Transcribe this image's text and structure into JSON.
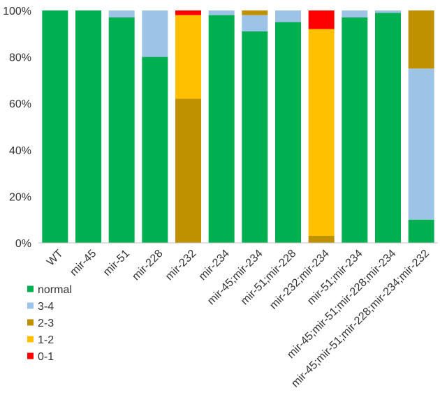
{
  "chart_data": {
    "type": "bar",
    "stacked": true,
    "title": "",
    "xlabel": "",
    "ylabel": "",
    "ylim": [
      0,
      100
    ],
    "yticks": [
      "0%",
      "20%",
      "40%",
      "60%",
      "80%",
      "100%"
    ],
    "grid": false,
    "legend_position": "bottom-left",
    "categories": [
      "WT",
      "mir-45",
      "mir-51",
      "mir-228",
      "mir-232",
      "mir-234",
      "mir-45;mir-234",
      "mir-51;mir-228",
      "mir-232;mir-234",
      "mir-51;mir-234",
      "mir-45;mir-51;mir-228;mir-234",
      "mir-45;mir-51;mir-228;mir-234;mir-232"
    ],
    "series": [
      {
        "name": "normal",
        "color": "#00b050",
        "values": [
          100,
          100,
          97,
          80,
          0,
          98,
          91,
          95,
          0,
          97,
          99,
          10
        ]
      },
      {
        "name": "3-4",
        "color": "#9dc3e6",
        "values": [
          0,
          0,
          3,
          20,
          0,
          2,
          7,
          5,
          0,
          3,
          1,
          65
        ]
      },
      {
        "name": "2-3",
        "color": "#bf9000",
        "values": [
          0,
          0,
          0,
          0,
          62,
          0,
          2,
          0,
          3,
          0,
          0,
          25
        ]
      },
      {
        "name": "1-2",
        "color": "#ffc000",
        "values": [
          0,
          0,
          0,
          0,
          36,
          0,
          0,
          0,
          89,
          0,
          0,
          0
        ]
      },
      {
        "name": "0-1",
        "color": "#ff0000",
        "values": [
          0,
          0,
          0,
          0,
          2,
          0,
          0,
          0,
          8,
          0,
          0,
          0
        ]
      }
    ]
  }
}
